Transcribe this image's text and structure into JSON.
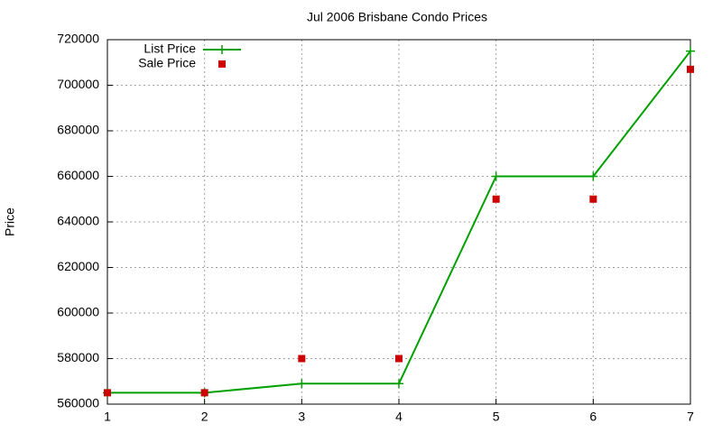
{
  "chart_data": {
    "type": "line",
    "title": "Jul 2006 Brisbane Condo Prices",
    "y_label": "Price",
    "x": [
      1,
      2,
      3,
      4,
      5,
      6,
      7
    ],
    "series": [
      {
        "name": "List Price",
        "color": "#00a000",
        "style": "linespoints",
        "values": [
          565000,
          565000,
          569000,
          569000,
          660000,
          660000,
          715000
        ]
      },
      {
        "name": "Sale Price",
        "color": "#cc0000",
        "style": "points",
        "values": [
          565000,
          565000,
          580000,
          580000,
          650000,
          650000,
          707000
        ]
      }
    ],
    "xlim": [
      1,
      7
    ],
    "xticks": [
      1,
      2,
      3,
      4,
      5,
      6,
      7
    ],
    "ylim": [
      560000,
      720000
    ],
    "yticks": [
      560000,
      580000,
      600000,
      620000,
      640000,
      660000,
      680000,
      700000,
      720000
    ],
    "grid": true,
    "legend": "top-left"
  }
}
